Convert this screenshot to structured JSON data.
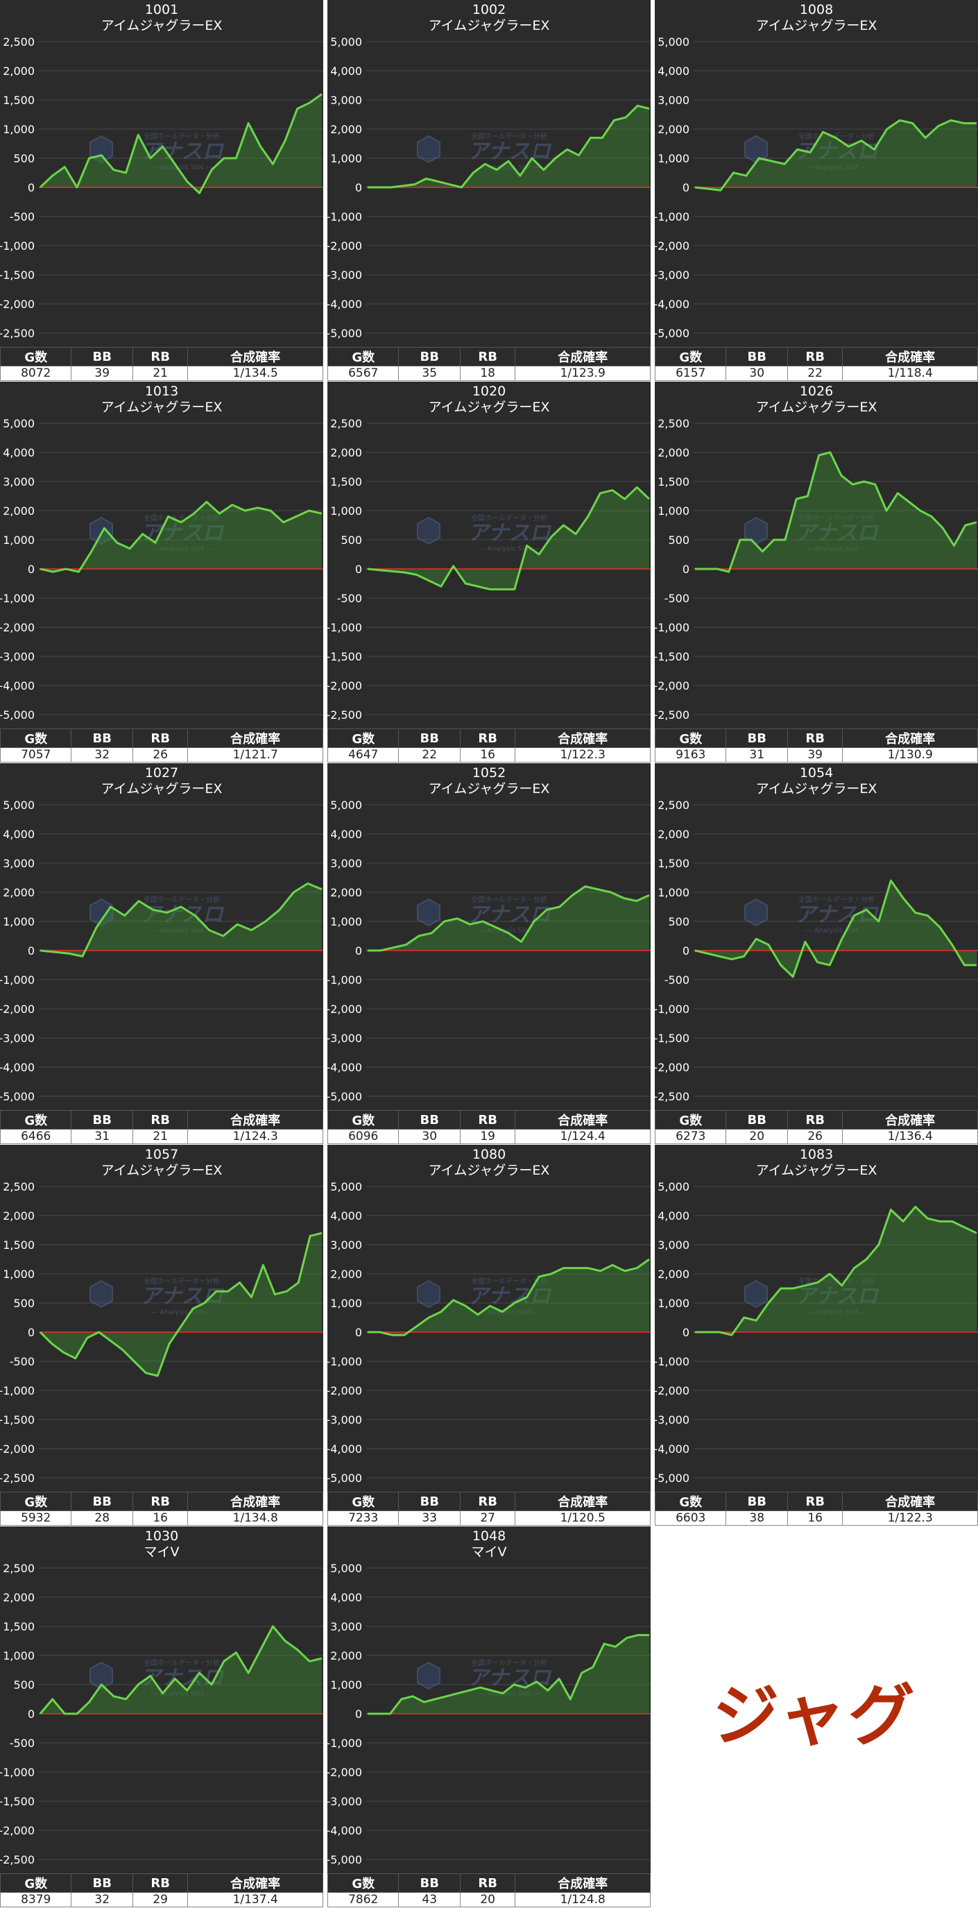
{
  "header_labels": {
    "g": "G数",
    "bb": "BB",
    "rb": "RB",
    "prob": "合成確率"
  },
  "watermark": {
    "name": "アナスロ",
    "sub": "Analysis Slot",
    "small": "全国ホールデータ・分析"
  },
  "tag_text": "ジャグ",
  "colors": {
    "line": "#6bd649",
    "fill": "#3d8a33",
    "zero": "#c0302a",
    "bg": "#2b2b2b",
    "tag": "#b32b0a"
  },
  "panels": [
    {
      "number": "1001",
      "name": "アイムジャグラーEX",
      "g": "8072",
      "bb": "39",
      "rb": "21",
      "prob": "1/134.5",
      "chart_data": {
        "type": "area",
        "ylim": [
          -2500,
          2500
        ],
        "yticks": [
          "2,500",
          "2,000",
          "1,500",
          "1,000",
          "500",
          "0",
          "-500",
          "-1,000",
          "-1,500",
          "-2,000",
          "-2,500"
        ],
        "y": [
          0,
          200,
          350,
          0,
          500,
          550,
          300,
          250,
          900,
          500,
          700,
          400,
          100,
          -100,
          300,
          500,
          500,
          1100,
          700,
          400,
          800,
          1350,
          1450,
          1600
        ]
      }
    },
    {
      "number": "1002",
      "name": "アイムジャグラーEX",
      "g": "6567",
      "bb": "35",
      "rb": "18",
      "prob": "1/123.9",
      "chart_data": {
        "type": "area",
        "ylim": [
          -5000,
          5000
        ],
        "yticks": [
          "5,000",
          "4,000",
          "3,000",
          "2,000",
          "1,000",
          "0",
          "-1,000",
          "-2,000",
          "-3,000",
          "-4,000",
          "-5,000"
        ],
        "y": [
          0,
          0,
          0,
          50,
          100,
          300,
          200,
          100,
          0,
          500,
          800,
          600,
          900,
          400,
          1000,
          600,
          1000,
          1300,
          1100,
          1700,
          1700,
          2300,
          2400,
          2800,
          2700
        ]
      }
    },
    {
      "number": "1008",
      "name": "アイムジャグラーEX",
      "g": "6157",
      "bb": "30",
      "rb": "22",
      "prob": "1/118.4",
      "chart_data": {
        "type": "area",
        "ylim": [
          -5000,
          5000
        ],
        "yticks": [
          "5,000",
          "4,000",
          "3,000",
          "2,000",
          "1,000",
          "0",
          "-1,000",
          "-2,000",
          "-3,000",
          "-4,000",
          "-5,000"
        ],
        "y": [
          0,
          -50,
          -100,
          500,
          400,
          1000,
          900,
          800,
          1300,
          1200,
          1900,
          1700,
          1400,
          1600,
          1300,
          2000,
          2300,
          2200,
          1700,
          2100,
          2300,
          2200,
          2200
        ]
      }
    },
    {
      "number": "1013",
      "name": "アイムジャグラーEX",
      "g": "7057",
      "bb": "32",
      "rb": "26",
      "prob": "1/121.7",
      "chart_data": {
        "type": "area",
        "ylim": [
          -5000,
          5000
        ],
        "yticks": [
          "5,000",
          "4,000",
          "3,000",
          "2,000",
          "1,000",
          "0",
          "-1,000",
          "-2,000",
          "-3,000",
          "-4,000",
          "-5,000"
        ],
        "y": [
          0,
          -100,
          0,
          -100,
          600,
          1400,
          900,
          700,
          1200,
          900,
          1800,
          1600,
          1900,
          2300,
          1900,
          2200,
          2000,
          2100,
          2000,
          1600,
          1800,
          2000,
          1900
        ]
      }
    },
    {
      "number": "1020",
      "name": "アイムジャグラーEX",
      "g": "4647",
      "bb": "22",
      "rb": "16",
      "prob": "1/122.3",
      "chart_data": {
        "type": "area",
        "ylim": [
          -2500,
          2500
        ],
        "yticks": [
          "2,500",
          "2,000",
          "1,500",
          "1,000",
          "500",
          "0",
          "-500",
          "-1,000",
          "-1,500",
          "-2,000",
          "-2,500"
        ],
        "y": [
          0,
          -20,
          -40,
          -60,
          -100,
          -200,
          -300,
          50,
          -250,
          -300,
          -350,
          -350,
          -350,
          400,
          250,
          550,
          750,
          600,
          900,
          1300,
          1350,
          1200,
          1400,
          1200
        ]
      }
    },
    {
      "number": "1026",
      "name": "アイムジャグラーEX",
      "g": "9163",
      "bb": "31",
      "rb": "39",
      "prob": "1/130.9",
      "chart_data": {
        "type": "area",
        "ylim": [
          -2500,
          2500
        ],
        "yticks": [
          "2,500",
          "2,000",
          "1,500",
          "1,000",
          "500",
          "0",
          "-500",
          "-1,000",
          "-1,500",
          "-2,000",
          "-2,500"
        ],
        "y": [
          0,
          0,
          0,
          -50,
          500,
          500,
          300,
          500,
          500,
          1200,
          1250,
          1950,
          2000,
          1600,
          1450,
          1500,
          1450,
          1000,
          1300,
          1150,
          1000,
          900,
          700,
          400,
          750,
          800
        ]
      }
    },
    {
      "number": "1027",
      "name": "アイムジャグラーEX",
      "g": "6466",
      "bb": "31",
      "rb": "21",
      "prob": "1/124.3",
      "chart_data": {
        "type": "area",
        "ylim": [
          -5000,
          5000
        ],
        "yticks": [
          "5,000",
          "4,000",
          "3,000",
          "2,000",
          "1,000",
          "0",
          "-1,000",
          "-2,000",
          "-3,000",
          "-4,000",
          "-5,000"
        ],
        "y": [
          0,
          -50,
          -100,
          -200,
          800,
          1500,
          1200,
          1700,
          1400,
          1300,
          1500,
          1200,
          700,
          500,
          900,
          700,
          1000,
          1400,
          2000,
          2300,
          2100
        ]
      }
    },
    {
      "number": "1052",
      "name": "アイムジャグラーEX",
      "g": "6096",
      "bb": "30",
      "rb": "19",
      "prob": "1/124.4",
      "chart_data": {
        "type": "area",
        "ylim": [
          -5000,
          5000
        ],
        "yticks": [
          "5,000",
          "4,000",
          "3,000",
          "2,000",
          "1,000",
          "0",
          "-1,000",
          "-2,000",
          "-3,000",
          "-4,000",
          "-5,000"
        ],
        "y": [
          0,
          0,
          100,
          200,
          500,
          600,
          1000,
          1100,
          900,
          1000,
          800,
          600,
          300,
          1000,
          1400,
          1500,
          1900,
          2200,
          2100,
          2000,
          1800,
          1700,
          1900
        ]
      }
    },
    {
      "number": "1054",
      "name": "アイムジャグラーEX",
      "g": "6273",
      "bb": "20",
      "rb": "26",
      "prob": "1/136.4",
      "chart_data": {
        "type": "area",
        "ylim": [
          -2500,
          2500
        ],
        "yticks": [
          "2,500",
          "2,000",
          "1,500",
          "1,000",
          "500",
          "0",
          "-500",
          "-1,000",
          "-1,500",
          "-2,000",
          "-2,500"
        ],
        "y": [
          0,
          -50,
          -100,
          -150,
          -100,
          200,
          100,
          -250,
          -450,
          150,
          -200,
          -250,
          200,
          600,
          700,
          500,
          1200,
          900,
          650,
          600,
          400,
          100,
          -250,
          -250
        ]
      }
    },
    {
      "number": "1057",
      "name": "アイムジャグラーEX",
      "g": "5932",
      "bb": "28",
      "rb": "16",
      "prob": "1/134.8",
      "chart_data": {
        "type": "area",
        "ylim": [
          -2500,
          2500
        ],
        "yticks": [
          "2,500",
          "2,000",
          "1,500",
          "1,000",
          "500",
          "0",
          "-500",
          "-1,000",
          "-1,500",
          "-2,000",
          "-2,500"
        ],
        "y": [
          0,
          -200,
          -350,
          -450,
          -100,
          0,
          -150,
          -300,
          -500,
          -700,
          -750,
          -200,
          100,
          400,
          500,
          700,
          700,
          850,
          600,
          1150,
          650,
          700,
          850,
          1650,
          1700
        ]
      }
    },
    {
      "number": "1080",
      "name": "アイムジャグラーEX",
      "g": "7233",
      "bb": "33",
      "rb": "27",
      "prob": "1/120.5",
      "chart_data": {
        "type": "area",
        "ylim": [
          -5000,
          5000
        ],
        "yticks": [
          "5,000",
          "4,000",
          "3,000",
          "2,000",
          "1,000",
          "0",
          "-1,000",
          "-2,000",
          "-3,000",
          "-4,000",
          "-5,000"
        ],
        "y": [
          0,
          0,
          -100,
          -100,
          200,
          500,
          700,
          1100,
          900,
          600,
          900,
          700,
          1000,
          1200,
          1900,
          2000,
          2200,
          2200,
          2200,
          2100,
          2300,
          2100,
          2200,
          2500
        ]
      }
    },
    {
      "number": "1083",
      "name": "アイムジャグラーEX",
      "g": "6603",
      "bb": "38",
      "rb": "16",
      "prob": "1/122.3",
      "chart_data": {
        "type": "area",
        "ylim": [
          -5000,
          5000
        ],
        "yticks": [
          "5,000",
          "4,000",
          "3,000",
          "2,000",
          "1,000",
          "0",
          "-1,000",
          "-2,000",
          "-3,000",
          "-4,000",
          "-5,000"
        ],
        "y": [
          0,
          0,
          0,
          -100,
          500,
          400,
          1000,
          1500,
          1500,
          1600,
          1700,
          2000,
          1600,
          2200,
          2500,
          3000,
          4200,
          3800,
          4300,
          3900,
          3800,
          3800,
          3600,
          3400
        ]
      }
    },
    {
      "number": "1030",
      "name": "マイV",
      "g": "8379",
      "bb": "32",
      "rb": "29",
      "prob": "1/137.4",
      "chart_data": {
        "type": "area",
        "ylim": [
          -2500,
          2500
        ],
        "yticks": [
          "2,500",
          "2,000",
          "1,500",
          "1,000",
          "500",
          "0",
          "-500",
          "-1,000",
          "-1,500",
          "-2,000",
          "-2,500"
        ],
        "y": [
          0,
          250,
          0,
          0,
          200,
          500,
          300,
          250,
          500,
          650,
          350,
          600,
          400,
          700,
          500,
          900,
          1050,
          700,
          1100,
          1500,
          1250,
          1100,
          900,
          950
        ]
      }
    },
    {
      "number": "1048",
      "name": "マイV",
      "g": "7862",
      "bb": "43",
      "rb": "20",
      "prob": "1/124.8",
      "chart_data": {
        "type": "area",
        "ylim": [
          -5000,
          5000
        ],
        "yticks": [
          "5,000",
          "4,000",
          "3,000",
          "2,000",
          "1,000",
          "0",
          "-1,000",
          "-2,000",
          "-3,000",
          "-4,000",
          "-5,000"
        ],
        "y": [
          0,
          0,
          0,
          500,
          600,
          400,
          500,
          600,
          700,
          800,
          900,
          800,
          700,
          1000,
          900,
          1100,
          800,
          1200,
          500,
          1400,
          1600,
          2400,
          2300,
          2600,
          2700,
          2700
        ]
      }
    }
  ]
}
